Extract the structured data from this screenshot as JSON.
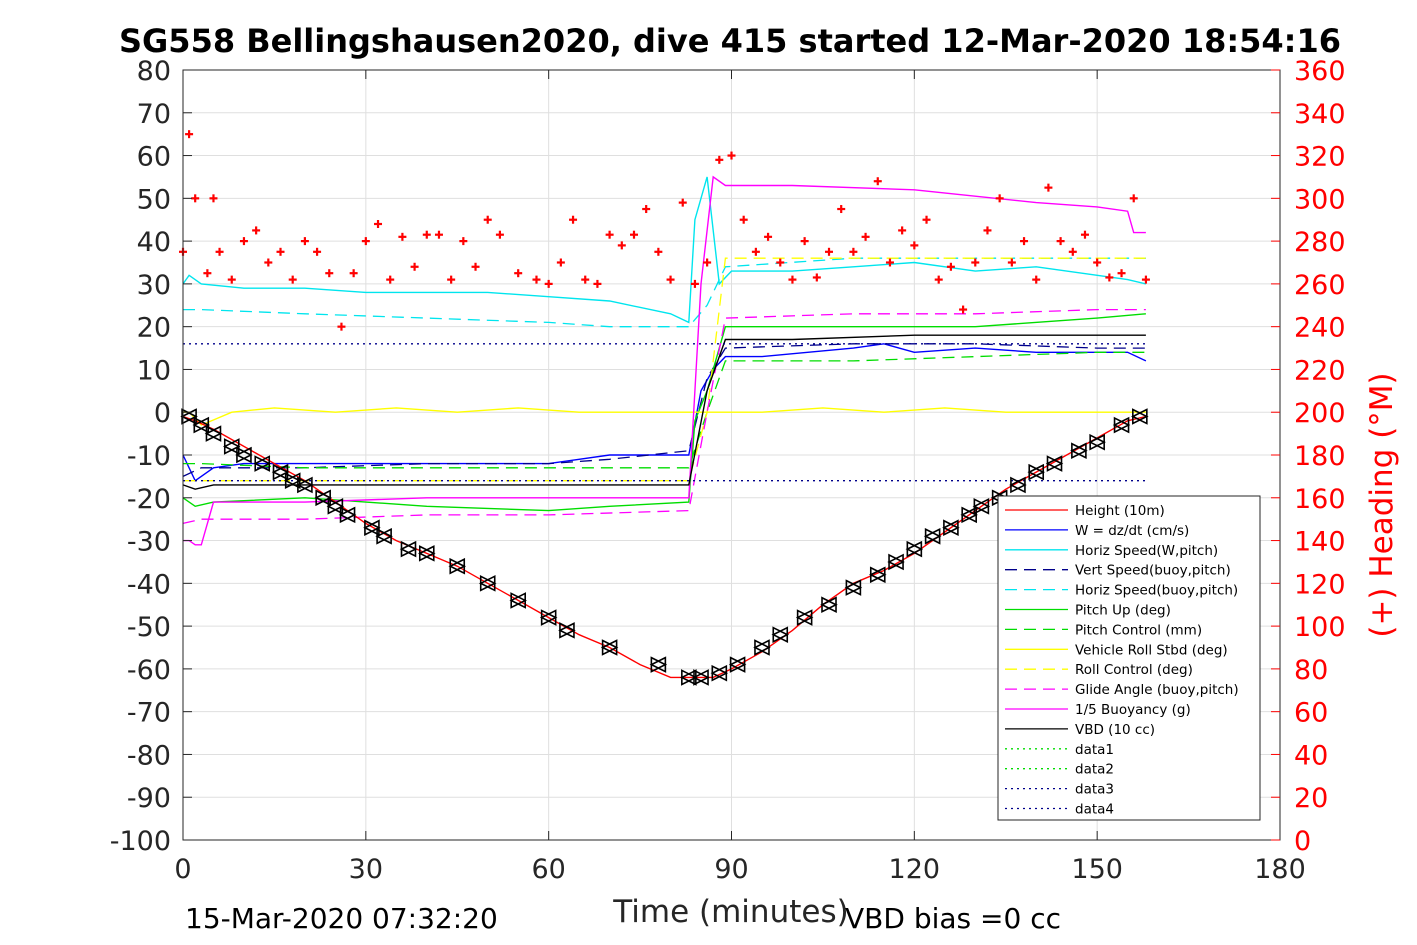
{
  "chart_data": {
    "type": "line",
    "title": "SG558 Bellingshausen2020, dive 415 started 12-Mar-2020 18:54:16",
    "xlabel": "Time (minutes)",
    "ylabel_right": "(+) Heading (°M)",
    "footer_left": "15-Mar-2020 07:32:20",
    "footer_right": "VBD bias =0 cc",
    "xlim": [
      0,
      180
    ],
    "ylim": [
      -100,
      80
    ],
    "ylim_right": [
      0,
      360
    ],
    "x_ticks": [
      0,
      30,
      60,
      90,
      120,
      150,
      180
    ],
    "y_ticks": [
      -100,
      -90,
      -80,
      -70,
      -60,
      -50,
      -40,
      -30,
      -20,
      -10,
      0,
      10,
      20,
      30,
      40,
      50,
      60,
      70,
      80
    ],
    "y_ticks_right": [
      0,
      20,
      40,
      60,
      80,
      100,
      120,
      140,
      160,
      180,
      200,
      220,
      240,
      260,
      280,
      300,
      320,
      340,
      360
    ],
    "x_tick_labels": [
      "0",
      "30",
      "60",
      "90",
      "120",
      "150",
      "180"
    ],
    "y_tick_labels": [
      "-100",
      "-90",
      "-80",
      "-70",
      "-60",
      "-50",
      "-40",
      "-30",
      "-20",
      "-10",
      "0",
      "10",
      "20",
      "30",
      "40",
      "50",
      "60",
      "70",
      "80"
    ],
    "y_tick_labels_right": [
      "0",
      "20",
      "40",
      "60",
      "80",
      "100",
      "120",
      "140",
      "160",
      "180",
      "200",
      "220",
      "240",
      "260",
      "280",
      "300",
      "320",
      "340",
      "360"
    ],
    "grid": true,
    "legend_position": "bottom-right",
    "series": [
      {
        "name": "Height (10m)",
        "color": "#ff0000",
        "style": "solid",
        "x": [
          0,
          2,
          5,
          10,
          15,
          20,
          25,
          30,
          35,
          40,
          45,
          50,
          55,
          60,
          65,
          70,
          75,
          80,
          84,
          87,
          90,
          95,
          100,
          105,
          110,
          115,
          120,
          125,
          130,
          135,
          140,
          145,
          150,
          155,
          158
        ],
        "y": [
          -1,
          -2,
          -4,
          -8,
          -12,
          -16,
          -21,
          -26,
          -30,
          -33,
          -36,
          -40,
          -44,
          -48,
          -52,
          -55,
          -59,
          -62,
          -62,
          -62,
          -60,
          -56,
          -51,
          -45,
          -40,
          -37,
          -33,
          -28,
          -23,
          -18,
          -14,
          -10,
          -6,
          -2,
          -1
        ]
      },
      {
        "name": "W = dz/dt (cm/s)",
        "color": "#0000ff",
        "style": "solid",
        "x": [
          0,
          2,
          5,
          10,
          20,
          30,
          40,
          50,
          60,
          65,
          70,
          80,
          83,
          85,
          87,
          89,
          95,
          110,
          115,
          120,
          130,
          140,
          150,
          155,
          158
        ],
        "y": [
          -10,
          -16,
          -13,
          -12,
          -12,
          -12,
          -12,
          -12,
          -12,
          -11,
          -10,
          -10,
          -10,
          5,
          10,
          13,
          13,
          15,
          16,
          14,
          15,
          14,
          14,
          14,
          12
        ]
      },
      {
        "name": "Horiz Speed(W,pitch)",
        "color": "#00e5ee",
        "style": "solid",
        "x": [
          0,
          1,
          3,
          10,
          20,
          30,
          40,
          50,
          60,
          70,
          80,
          83,
          84,
          86,
          88,
          90,
          100,
          110,
          120,
          130,
          140,
          150,
          155,
          158
        ],
        "y": [
          30,
          32,
          30,
          29,
          29,
          28,
          28,
          28,
          27,
          26,
          23,
          21,
          45,
          55,
          30,
          33,
          33,
          34,
          35,
          33,
          34,
          32,
          31,
          30
        ]
      },
      {
        "name": "Vert Speed(buoy,pitch)",
        "color": "#00008b",
        "style": "dash",
        "x": [
          0,
          3,
          20,
          40,
          60,
          70,
          83,
          86,
          89,
          110,
          130,
          150,
          158
        ],
        "y": [
          -15,
          -13,
          -13,
          -12,
          -12,
          -11,
          -9,
          8,
          15,
          16,
          16,
          15,
          15
        ]
      },
      {
        "name": "Horiz Speed(buoy,pitch)",
        "color": "#00e5ee",
        "style": "dash",
        "x": [
          0,
          3,
          20,
          40,
          60,
          70,
          83,
          86,
          89,
          110,
          130,
          150,
          158
        ],
        "y": [
          24,
          24,
          23,
          22,
          21,
          20,
          20,
          25,
          34,
          36,
          36,
          36,
          36
        ]
      },
      {
        "name": "Pitch Up (deg)",
        "color": "#00dd00",
        "style": "solid",
        "x": [
          0,
          2,
          5,
          20,
          40,
          60,
          70,
          83,
          84,
          86,
          89,
          110,
          130,
          150,
          158
        ],
        "y": [
          -20,
          -22,
          -21,
          -20,
          -22,
          -23,
          -22,
          -21,
          -2,
          5,
          20,
          20,
          20,
          22,
          23
        ]
      },
      {
        "name": "Pitch Control (mm)",
        "color": "#00dd00",
        "style": "dash",
        "x": [
          0,
          3,
          20,
          40,
          60,
          83,
          86,
          89,
          110,
          130,
          150,
          158
        ],
        "y": [
          -12,
          -12,
          -13,
          -13,
          -13,
          -13,
          0,
          12,
          12,
          13,
          14,
          14
        ]
      },
      {
        "name": "Vehicle Roll Stbd (deg)",
        "color": "#ffff00",
        "style": "solid",
        "x": [
          0,
          1,
          3,
          8,
          15,
          25,
          35,
          45,
          55,
          65,
          75,
          83,
          85,
          88,
          95,
          105,
          115,
          125,
          135,
          145,
          155,
          158
        ],
        "y": [
          0,
          0,
          -3,
          0,
          1,
          0,
          1,
          0,
          1,
          0,
          0,
          0,
          0,
          0,
          0,
          1,
          0,
          1,
          0,
          0,
          0,
          0
        ]
      },
      {
        "name": "Roll Control (deg)",
        "color": "#ffff00",
        "style": "dash",
        "x": [
          0,
          3,
          20,
          40,
          60,
          83,
          86,
          89,
          110,
          130,
          150,
          158
        ],
        "y": [
          -16,
          -16,
          -16,
          -16,
          -16,
          -16,
          0,
          36,
          36,
          36,
          36,
          36
        ]
      },
      {
        "name": "Glide Angle (buoy,pitch)",
        "color": "#ff00ff",
        "style": "dash",
        "x": [
          0,
          3,
          20,
          40,
          60,
          83,
          86,
          89,
          110,
          130,
          150,
          158
        ],
        "y": [
          -26,
          -25,
          -25,
          -24,
          -24,
          -23,
          0,
          22,
          23,
          23,
          24,
          24
        ]
      },
      {
        "name": "1/5 Buoyancy (g)",
        "color": "#ff00ff",
        "style": "solid",
        "x": [
          0,
          1,
          2,
          3,
          5,
          20,
          40,
          60,
          83,
          85,
          87,
          89,
          100,
          120,
          140,
          150,
          155,
          156,
          158
        ],
        "y": [
          -30,
          -30,
          -31,
          -31,
          -21,
          -21,
          -20,
          -20,
          -20,
          30,
          55,
          53,
          53,
          52,
          49,
          48,
          47,
          42,
          42
        ]
      },
      {
        "name": "VBD (10 cc)",
        "color": "#000000",
        "style": "solid",
        "x": [
          0,
          2,
          5,
          20,
          40,
          60,
          83,
          86,
          89,
          100,
          120,
          140,
          158
        ],
        "y": [
          -17,
          -18,
          -17,
          -17,
          -17,
          -17,
          -17,
          5,
          17,
          17,
          18,
          18,
          18
        ]
      },
      {
        "name": "data1",
        "color": "#00dd00",
        "style": "dot",
        "x": [],
        "y": []
      },
      {
        "name": "data2",
        "color": "#00dd00",
        "style": "dot",
        "x": [],
        "y": []
      },
      {
        "name": "data3",
        "color": "#00008b",
        "style": "dot",
        "x": [
          0,
          90,
          158
        ],
        "y": [
          16,
          16,
          16
        ]
      },
      {
        "name": "data4",
        "color": "#00008b",
        "style": "dot",
        "x": [
          0,
          90,
          158
        ],
        "y": [
          -16,
          -16,
          -16
        ]
      }
    ],
    "heading_series": {
      "name": "(+) Heading (°M)",
      "color": "#ff0000",
      "marker": "+",
      "axis": "right",
      "x": [
        0,
        1,
        2,
        4,
        5,
        6,
        8,
        10,
        12,
        14,
        16,
        18,
        20,
        22,
        24,
        26,
        28,
        30,
        32,
        34,
        36,
        38,
        40,
        42,
        44,
        46,
        48,
        50,
        52,
        55,
        58,
        60,
        62,
        64,
        66,
        68,
        70,
        72,
        74,
        76,
        78,
        80,
        82,
        84,
        86,
        88,
        90,
        92,
        94,
        96,
        98,
        100,
        102,
        104,
        106,
        108,
        110,
        112,
        114,
        116,
        118,
        120,
        122,
        124,
        126,
        128,
        130,
        132,
        134,
        136,
        138,
        140,
        142,
        144,
        146,
        148,
        150,
        152,
        154,
        156,
        158
      ],
      "y": [
        275,
        330,
        300,
        265,
        300,
        275,
        262,
        280,
        285,
        270,
        275,
        262,
        280,
        275,
        265,
        240,
        265,
        280,
        288,
        262,
        282,
        268,
        283,
        283,
        262,
        280,
        268,
        290,
        283,
        265,
        262,
        260,
        270,
        290,
        262,
        260,
        283,
        278,
        283,
        295,
        275,
        262,
        298,
        260,
        270,
        318,
        320,
        290,
        275,
        282,
        270,
        262,
        280,
        263,
        275,
        295,
        275,
        282,
        308,
        270,
        285,
        278,
        290,
        262,
        268,
        248,
        270,
        285,
        300,
        270,
        280,
        262,
        305,
        280,
        275,
        283,
        270,
        263,
        265,
        300,
        262
      ]
    },
    "vbd_markers": {
      "x": [
        1,
        3,
        5,
        8,
        10,
        13,
        16,
        18,
        20,
        23,
        25,
        27,
        31,
        33,
        37,
        40,
        45,
        50,
        55,
        60,
        63,
        70,
        78,
        83,
        85,
        88,
        91,
        95,
        98,
        102,
        106,
        110,
        114,
        117,
        120,
        123,
        126,
        129,
        131,
        134,
        137,
        140,
        143,
        147,
        150,
        154,
        157
      ],
      "y": [
        -1,
        -3,
        -5,
        -8,
        -10,
        -12,
        -14,
        -16,
        -17,
        -20,
        -22,
        -24,
        -27,
        -29,
        -32,
        -33,
        -36,
        -40,
        -44,
        -48,
        -51,
        -55,
        -59,
        -62,
        -62,
        -61,
        -59,
        -55,
        -52,
        -48,
        -45,
        -41,
        -38,
        -35,
        -32,
        -29,
        -27,
        -24,
        -22,
        -20,
        -17,
        -14,
        -12,
        -9,
        -7,
        -3,
        -1
      ]
    }
  }
}
